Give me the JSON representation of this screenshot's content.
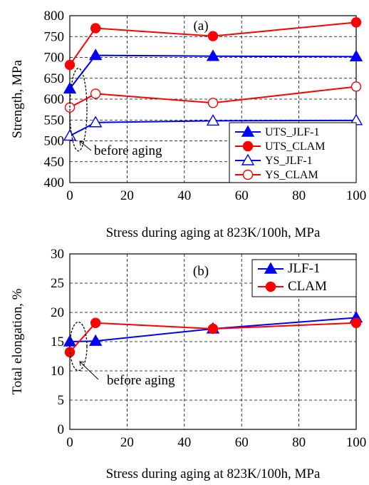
{
  "chart_data": [
    {
      "type": "line",
      "panel_label": "(a)",
      "xlabel": "Stress during aging at 823K/100h, MPa",
      "ylabel": "Strength, MPa",
      "xlim": [
        0,
        100
      ],
      "ylim": [
        400,
        800
      ],
      "xticks": [
        0,
        20,
        40,
        60,
        80,
        100
      ],
      "yticks": [
        400,
        450,
        500,
        550,
        600,
        650,
        700,
        750,
        800
      ],
      "grid": "dashed",
      "legend_position": "bottom-right",
      "annotation": "before aging",
      "series": [
        {
          "name": "UTS_JLF-1",
          "color": "#0000ff",
          "marker": "triangle-filled",
          "x": [
            0,
            9,
            50,
            100
          ],
          "y": [
            625,
            705,
            703,
            702
          ]
        },
        {
          "name": "UTS_CLAM",
          "color": "#ff0000",
          "marker": "circle-filled",
          "x": [
            0,
            9,
            50,
            100
          ],
          "y": [
            682,
            770,
            751,
            784
          ]
        },
        {
          "name": "YS_JLF-1",
          "color": "#0000ff",
          "marker": "triangle-open",
          "x": [
            0,
            9,
            50,
            100
          ],
          "y": [
            512,
            544,
            548,
            549
          ]
        },
        {
          "name": "YS_CLAM",
          "color": "#ff0000",
          "marker": "circle-open",
          "x": [
            0,
            9,
            50,
            100
          ],
          "y": [
            580,
            613,
            591,
            630
          ]
        }
      ]
    },
    {
      "type": "line",
      "panel_label": "(b)",
      "xlabel": "Stress during aging at 823K/100h, MPa",
      "ylabel": "Total elongation, %",
      "xlim": [
        0,
        100
      ],
      "ylim": [
        0,
        30
      ],
      "xticks": [
        0,
        20,
        40,
        60,
        80,
        100
      ],
      "yticks": [
        0,
        5,
        10,
        15,
        20,
        25,
        30
      ],
      "grid": "dashed",
      "legend_position": "top-right",
      "annotation": "before aging",
      "series": [
        {
          "name": "JLF-1",
          "color": "#0000ff",
          "marker": "triangle-filled",
          "x": [
            0,
            9,
            50,
            100
          ],
          "y": [
            15.0,
            15.1,
            17.2,
            19.1
          ]
        },
        {
          "name": "CLAM",
          "color": "#ff0000",
          "marker": "circle-filled",
          "x": [
            0,
            9,
            50,
            100
          ],
          "y": [
            13.2,
            18.2,
            17.2,
            18.2
          ]
        }
      ]
    }
  ]
}
